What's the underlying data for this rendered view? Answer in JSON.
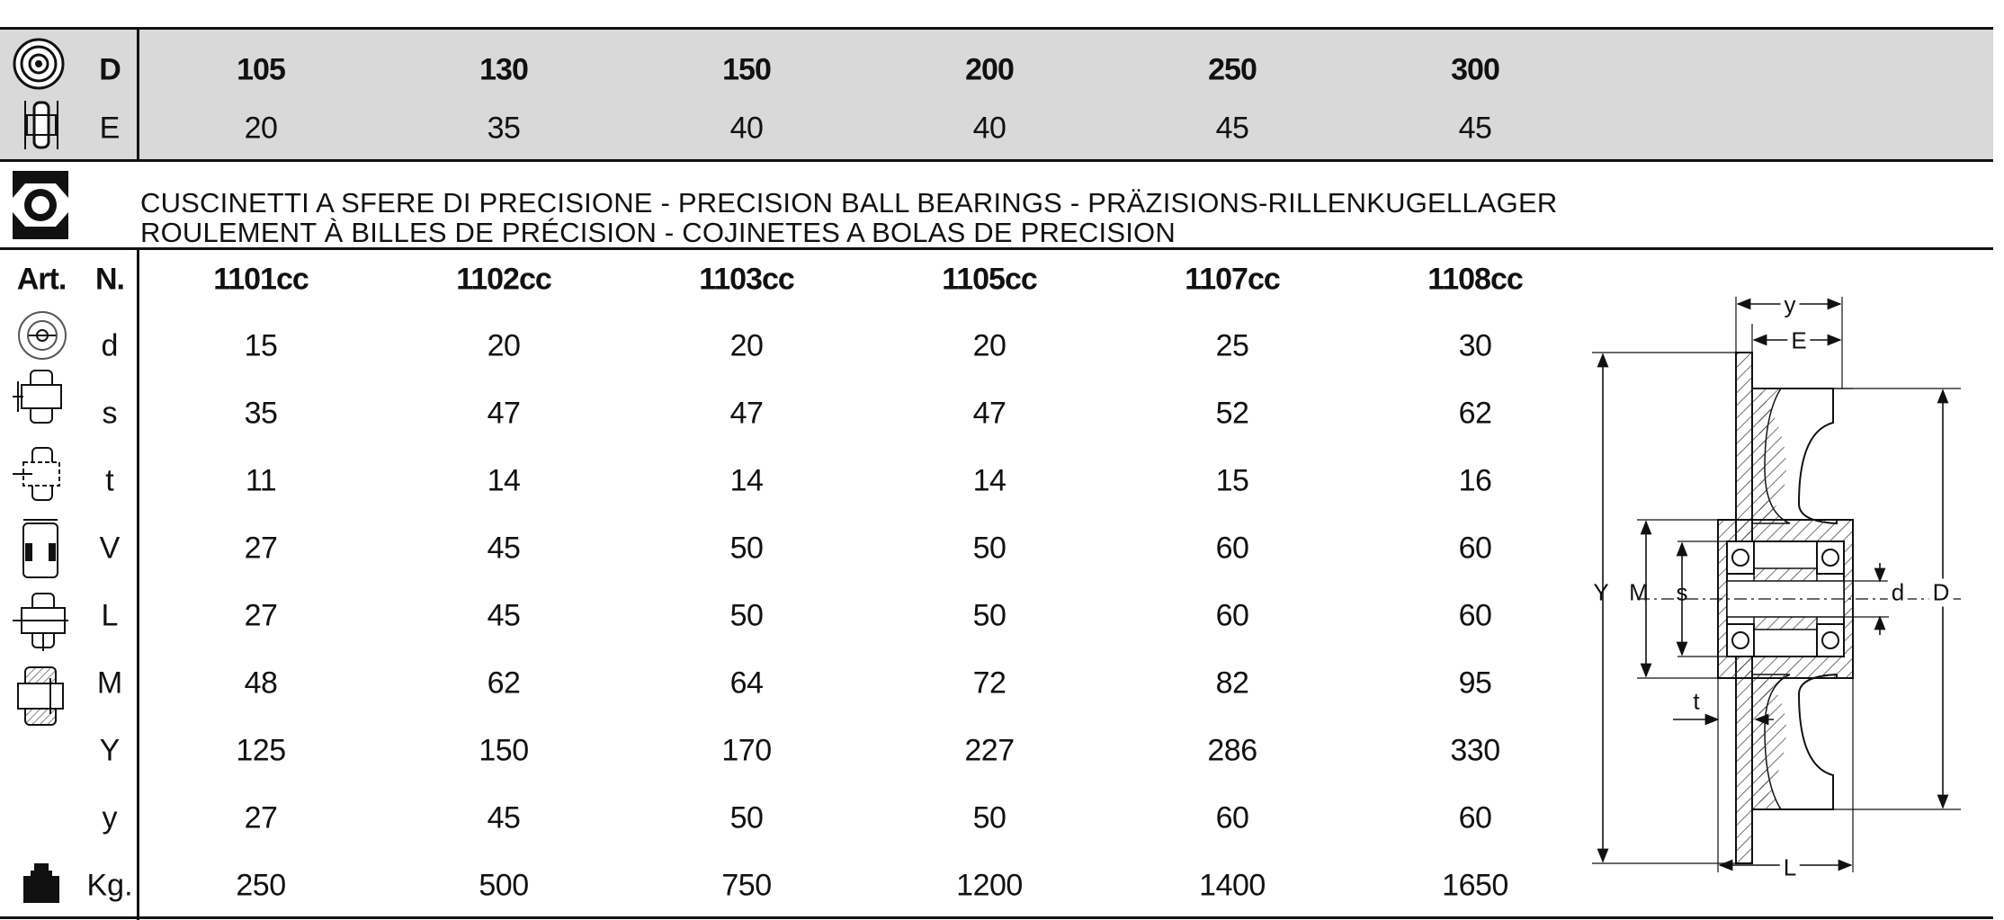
{
  "header": {
    "rows": [
      {
        "label": "D",
        "values": [
          "105",
          "130",
          "150",
          "200",
          "250",
          "300"
        ],
        "bold": true
      },
      {
        "label": "E",
        "values": [
          "20",
          "35",
          "40",
          "40",
          "45",
          "45"
        ],
        "bold": false
      }
    ]
  },
  "section": {
    "title_line1": "CUSCINETTI A SFERE DI PRECISIONE - PRECISION BALL BEARINGS - PRÄZISIONS-RILLENKUGELLAGER",
    "title_line2": "ROULEMENT À BILLES DE PRÉCISION - COJINETES A BOLAS DE PRECISION"
  },
  "table": {
    "col_art": "Art.",
    "col_n": "N.",
    "articles": [
      "1101cc",
      "1102cc",
      "1103cc",
      "1105cc",
      "1107cc",
      "1108cc"
    ],
    "rows": [
      {
        "label": "d",
        "icon": "wheel-bore-icon",
        "values": [
          "15",
          "20",
          "20",
          "20",
          "25",
          "30"
        ]
      },
      {
        "label": "s",
        "icon": "hub-diameter-icon",
        "values": [
          "35",
          "47",
          "47",
          "47",
          "52",
          "62"
        ]
      },
      {
        "label": "t",
        "icon": "hub-offset-icon",
        "values": [
          "11",
          "14",
          "14",
          "14",
          "15",
          "16"
        ]
      },
      {
        "label": "V",
        "icon": "bearing-width-icon",
        "values": [
          "27",
          "45",
          "50",
          "50",
          "60",
          "60"
        ]
      },
      {
        "label": "L",
        "icon": "hub-length-icon",
        "values": [
          "27",
          "45",
          "50",
          "50",
          "60",
          "60"
        ]
      },
      {
        "label": "M",
        "icon": "hub-section-icon",
        "values": [
          "48",
          "62",
          "64",
          "72",
          "82",
          "95"
        ]
      },
      {
        "label": "Y",
        "icon": "",
        "values": [
          "125",
          "150",
          "170",
          "227",
          "286",
          "330"
        ]
      },
      {
        "label": "y",
        "icon": "",
        "values": [
          "27",
          "45",
          "50",
          "50",
          "60",
          "60"
        ]
      },
      {
        "label": "Kg.",
        "icon": "weight-icon",
        "values": [
          "250",
          "500",
          "750",
          "1200",
          "1400",
          "1650"
        ]
      }
    ]
  },
  "diagram": {
    "labels": {
      "y": "y",
      "E": "E",
      "Y": "Y",
      "M": "M",
      "s": "s",
      "d": "d",
      "D": "D",
      "t": "t",
      "L": "L"
    }
  }
}
